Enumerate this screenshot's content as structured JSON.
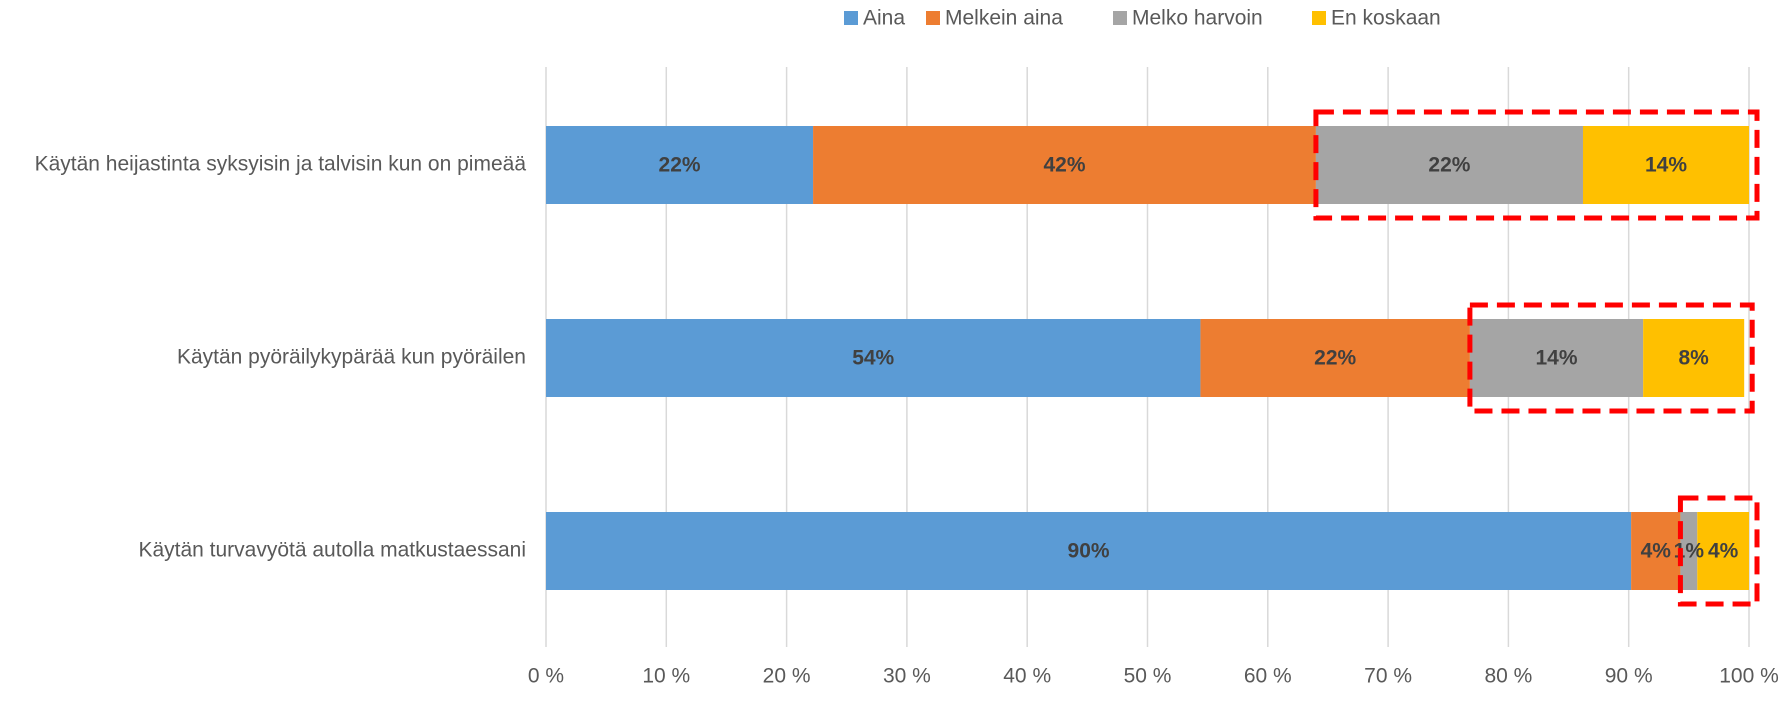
{
  "chart_data": {
    "type": "stacked_bar_horizontal",
    "categories": [
      "Käytän heijastinta syksyisin ja talvisin kun on pimeää",
      "Käytän pyöräilykypärää kun pyöräilen",
      "Käytän turvavyötä autolla matkustaessani"
    ],
    "series": [
      {
        "name": "Aina",
        "color": "#5b9bd5",
        "values": [
          22.2,
          54.4,
          90.2
        ],
        "value_labels": [
          "22%",
          "54%",
          "90%"
        ]
      },
      {
        "name": "Melkein aina",
        "color": "#ed7d31",
        "values": [
          41.8,
          22.4,
          4.1
        ],
        "value_labels": [
          "42%",
          "22%",
          "4%"
        ]
      },
      {
        "name": "Melko harvoin",
        "color": "#a5a5a5",
        "values": [
          22.2,
          14.4,
          1.4
        ],
        "value_labels": [
          "22%",
          "14%",
          "1%"
        ]
      },
      {
        "name": "En koskaan",
        "color": "#ffc000",
        "values": [
          13.8,
          8.4,
          4.3
        ],
        "value_labels": [
          "14%",
          "8%",
          "4%"
        ]
      }
    ],
    "xlim": [
      0,
      100
    ],
    "xticks": [
      {
        "value": 0,
        "label": "0 %"
      },
      {
        "value": 10,
        "label": "10 %"
      },
      {
        "value": 20,
        "label": "20 %"
      },
      {
        "value": 30,
        "label": "30 %"
      },
      {
        "value": 40,
        "label": "40 %"
      },
      {
        "value": 50,
        "label": "50 %"
      },
      {
        "value": 60,
        "label": "60 %"
      },
      {
        "value": 70,
        "label": "70 %"
      },
      {
        "value": 80,
        "label": "80 %"
      },
      {
        "value": 90,
        "label": "90 %"
      },
      {
        "value": 100,
        "label": "100 %"
      }
    ],
    "grid": true,
    "legend": "top"
  }
}
